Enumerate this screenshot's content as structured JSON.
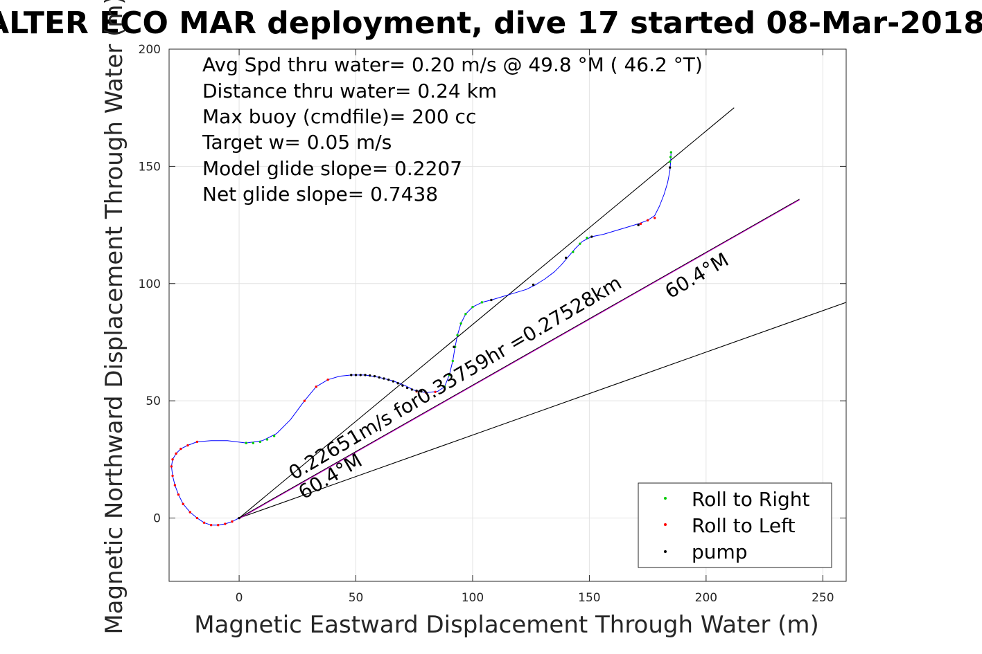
{
  "chart_data": {
    "type": "line",
    "title": "ALTER ECO MAR deployment, dive 17 started 08-Mar-2018",
    "xlabel": "Magnetic Eastward Displacement Through Water (m)",
    "ylabel": "Magnetic Northward Displacement Through Water (m)",
    "xlim": [
      -30,
      260
    ],
    "ylim": [
      -27,
      200
    ],
    "xticks": [
      "0",
      "50",
      "100",
      "150",
      "200",
      "250"
    ],
    "xtick_values": [
      0,
      50,
      100,
      150,
      200,
      250
    ],
    "yticks": [
      "0",
      "50",
      "100",
      "150",
      "200"
    ],
    "ytick_values": [
      0,
      50,
      100,
      150,
      200
    ],
    "grid": true,
    "stats": [
      "Avg Spd thru water=  0.20 m/s @  49.8 °M ( 46.2 °T)",
      "Distance thru water=  0.24 km",
      "Max buoy (cmdfile)= 200 cc",
      "Target w= 0.05 m/s",
      "Model glide slope= 0.2207",
      "Net glide slope= 0.7438"
    ],
    "annotations": {
      "current": "0.22651m/s for0.33759hr =0.27528km",
      "heading_low": "60.4°M",
      "heading_high": "60.4°M"
    },
    "reference_lines": [
      {
        "name": "net track",
        "color": "#000000",
        "x": [
          0,
          212
        ],
        "y": [
          0,
          175
        ]
      },
      {
        "name": "depth-avg current",
        "color": "#000000",
        "x": [
          0,
          240
        ],
        "y": [
          0,
          136
        ]
      },
      {
        "name": "heading",
        "color": "#000000",
        "x": [
          0,
          260
        ],
        "y": [
          0,
          92
        ]
      }
    ],
    "track": {
      "color": "#0000ff",
      "x": [
        0,
        -3,
        -6,
        -9,
        -12,
        -15,
        -18,
        -21,
        -24,
        -26,
        -27.5,
        -28.5,
        -29,
        -28.5,
        -27,
        -25,
        -22,
        -18,
        -12,
        -5,
        3,
        10,
        16,
        22,
        28,
        33,
        38,
        43,
        48,
        54,
        60,
        66,
        71,
        75,
        80,
        85,
        88,
        90,
        91.5,
        92.5,
        93.5,
        95,
        97,
        100,
        104,
        108,
        113,
        118,
        123,
        127,
        131,
        135,
        138,
        141,
        144,
        147,
        151,
        156,
        161,
        166,
        171,
        175,
        178,
        180,
        182,
        183.5,
        184.5,
        184.8,
        185
      ],
      "y": [
        0,
        -1.5,
        -2.5,
        -3,
        -3,
        -2,
        0,
        2.5,
        6,
        10,
        14,
        18,
        22,
        25,
        27.5,
        29.5,
        31,
        32.5,
        33,
        33,
        32,
        33,
        36,
        42,
        50,
        56,
        59,
        60.5,
        61,
        61,
        60,
        58.5,
        56.5,
        54.5,
        53.5,
        54,
        56,
        61,
        67,
        73,
        78,
        83,
        87,
        90,
        92,
        93,
        94.5,
        96,
        97.5,
        99.5,
        102,
        105,
        108,
        111.5,
        115,
        118,
        120,
        121,
        122.5,
        124,
        125.5,
        127,
        129,
        133,
        138,
        143,
        148,
        152,
        156
      ]
    },
    "sample_markers": {
      "Roll to Right": {
        "color": "#00cc00",
        "x": [
          3,
          6,
          9,
          12,
          15,
          88,
          90,
          91.5,
          92.5,
          93.5,
          95,
          97,
          100,
          104,
          143,
          146,
          149,
          184.5,
          184.8,
          185
        ],
        "y": [
          32,
          32,
          32.5,
          33.5,
          35,
          56,
          61,
          67,
          73,
          78,
          83,
          87,
          90,
          92,
          113.5,
          117,
          119.5,
          152,
          154,
          156
        ]
      },
      "Roll to Left": {
        "color": "#ff0000",
        "x": [
          0,
          -3,
          -6,
          -9,
          -12,
          -15,
          -18,
          -21,
          -24,
          -26,
          -27.5,
          -28.5,
          -29,
          -28.5,
          -27,
          -25,
          -22,
          -18,
          28,
          33,
          38,
          76,
          80,
          84,
          172,
          175,
          178
        ],
        "y": [
          0,
          -1.5,
          -2.5,
          -3,
          -3,
          -2,
          0,
          2.5,
          6,
          10,
          14,
          18,
          22,
          25,
          27.5,
          29.5,
          31,
          32.5,
          50,
          56,
          59,
          54,
          53.5,
          53.8,
          125.5,
          127,
          128
        ]
      },
      "pump": {
        "color": "#000000",
        "x": [
          0,
          48,
          50,
          52,
          54,
          56,
          58,
          60,
          62,
          64,
          66,
          68,
          70,
          72,
          74,
          76,
          78,
          92,
          108,
          126,
          140,
          151,
          171,
          184.5
        ],
        "y": [
          0,
          61,
          61,
          61,
          61,
          60.8,
          60.5,
          60,
          59.5,
          59,
          58.3,
          57.5,
          56.5,
          55.5,
          54.8,
          54.3,
          54,
          73,
          93,
          99.5,
          111,
          120,
          125,
          149.5
        ]
      }
    },
    "legend": {
      "placement": "bottom-right",
      "entries": [
        {
          "label": "Roll to Right",
          "color": "#00cc00"
        },
        {
          "label": "Roll to Left",
          "color": "#ff0000"
        },
        {
          "label": "pump",
          "color": "#000000"
        }
      ]
    }
  }
}
